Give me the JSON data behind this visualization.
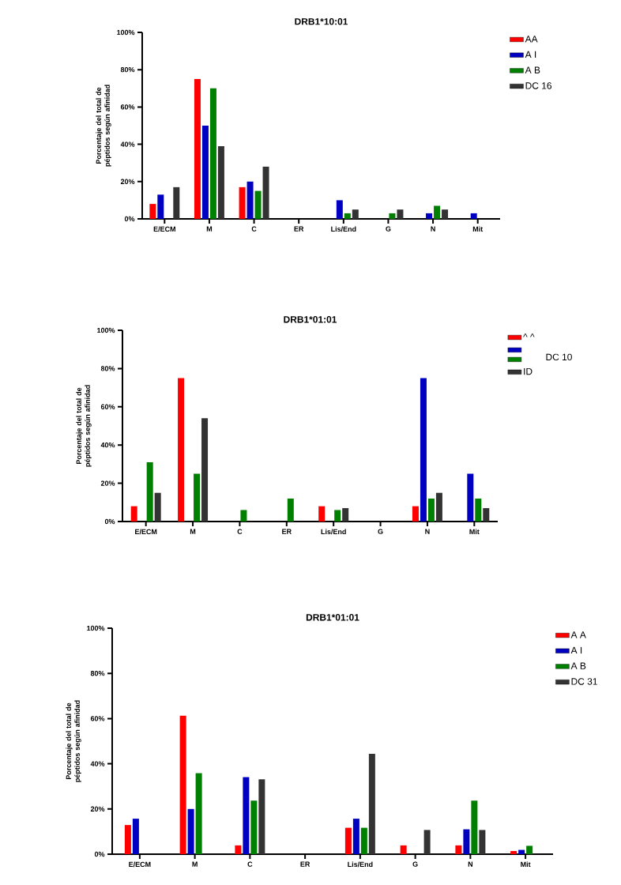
{
  "chart_data": [
    {
      "type": "bar",
      "title": "DRB1*10:01",
      "ylabel": "Porcentaje del total de péptidos según afinidad",
      "categories": [
        "E/ECM",
        "M",
        "C",
        "ER",
        "Lis/End",
        "G",
        "N",
        "Mit"
      ],
      "ylim": [
        0,
        100
      ],
      "yticks": [
        {
          "value": 0,
          "label": "0%"
        },
        {
          "value": 20,
          "label": "20%"
        },
        {
          "value": 40,
          "label": "40%"
        },
        {
          "value": 60,
          "label": "60%"
        },
        {
          "value": 80,
          "label": "80%"
        },
        {
          "value": 100,
          "label": "100%"
        }
      ],
      "legend": "right",
      "series": [
        {
          "name": "AA",
          "color": "#ff0000",
          "values": [
            8,
            75,
            17,
            0,
            0,
            0,
            0,
            0
          ]
        },
        {
          "name": "A I",
          "color": "#0000c0",
          "values": [
            13,
            50,
            20,
            0,
            10,
            0,
            3,
            3
          ]
        },
        {
          "name": "A B",
          "color": "#008000",
          "values": [
            0,
            70,
            15,
            0,
            3,
            3,
            7,
            0
          ]
        },
        {
          "name": "DC 16",
          "color": "#333333",
          "values": [
            17,
            39,
            28,
            0,
            5,
            5,
            5,
            0
          ]
        }
      ]
    },
    {
      "type": "bar",
      "title": "DRB1*01:01",
      "ylabel": "Porcentaje del total de péptidos según afinidad",
      "categories": [
        "E/ECM",
        "M",
        "C",
        "ER",
        "Lis/End",
        "G",
        "N",
        "Mit"
      ],
      "ylim": [
        0,
        100
      ],
      "yticks": [
        {
          "value": 0,
          "label": "0%"
        },
        {
          "value": 20,
          "label": "20%"
        },
        {
          "value": 40,
          "label": "40%"
        },
        {
          "value": 60,
          "label": "60%"
        },
        {
          "value": 80,
          "label": "80%"
        },
        {
          "value": 100,
          "label": "100%"
        }
      ],
      "legend": "right",
      "annotations": [
        "DC 10"
      ],
      "series": [
        {
          "name": "^ ^",
          "color": "#ff0000",
          "values": [
            8,
            75,
            0,
            0,
            8,
            0,
            8,
            0
          ]
        },
        {
          "color": "#0000c0",
          "values": [
            0,
            0,
            0,
            0,
            0,
            0,
            75,
            25
          ]
        },
        {
          "color": "#008000",
          "values": [
            31,
            25,
            6,
            12,
            6,
            0,
            12,
            12
          ]
        },
        {
          "name": "ID",
          "color": "#333333",
          "values": [
            15,
            54,
            0,
            0,
            7,
            0,
            15,
            7
          ]
        }
      ]
    },
    {
      "type": "bar",
      "title": "DRB1*01:01",
      "ylabel": "Porcentaje del total de péptidos según afinidad",
      "categories": [
        "E/ECM",
        "M",
        "C",
        "ER",
        "Lis/End",
        "G",
        "N",
        "Mit"
      ],
      "ylim": [
        0,
        100
      ],
      "yticks": [
        {
          "value": 0,
          "label": "0%"
        },
        {
          "value": 20,
          "label": "20%"
        },
        {
          "value": 40,
          "label": "40%"
        },
        {
          "value": 60,
          "label": "60%"
        },
        {
          "value": 80,
          "label": "80%"
        },
        {
          "value": 100,
          "label": "100%"
        }
      ],
      "legend": "top right",
      "series": [
        {
          "name": "A A",
          "color": "#ff0000",
          "values": [
            12.9,
            61.3,
            3.9,
            0,
            11.7,
            3.9,
            3.9,
            1.4
          ]
        },
        {
          "name": "A I",
          "color": "#0000c0",
          "values": [
            15.7,
            20,
            34.1,
            0,
            15.7,
            0,
            11,
            1.9
          ]
        },
        {
          "name": "A B",
          "color": "#008000",
          "values": [
            0,
            35.8,
            23.7,
            0,
            11.7,
            0,
            23.7,
            3.7
          ]
        },
        {
          "name": "DC 31",
          "color": "#333333",
          "values": [
            0,
            0,
            33.1,
            0,
            44.4,
            10.7,
            10.7,
            0
          ]
        }
      ]
    }
  ]
}
